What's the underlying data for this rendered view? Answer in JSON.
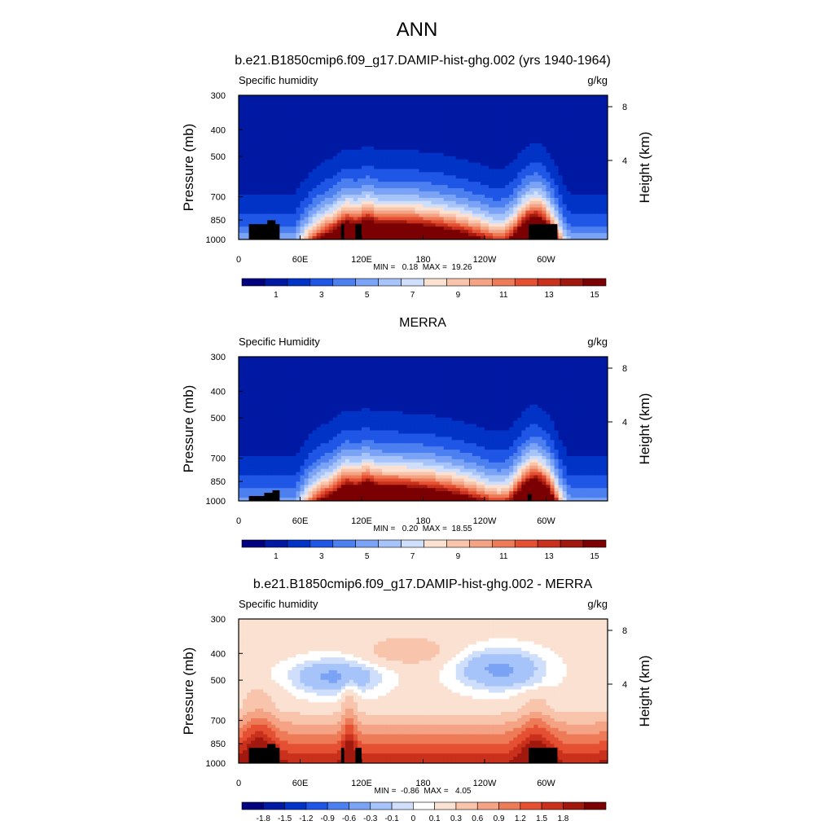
{
  "figure": {
    "title": "ANN",
    "panel_titles": [
      "b.e21.B1850cmip6.f09_g17.DAMIP-hist-ghg.002 (yrs 1940-1964)",
      "MERRA",
      "b.e21.B1850cmip6.f09_g17.DAMIP-hist-ghg.002 - MERRA"
    ]
  },
  "colors": {
    "abs_levels": [
      "#00007f",
      "#0019a3",
      "#0033c6",
      "#1f56e6",
      "#4c7ff0",
      "#7aa3f5",
      "#a6c4f9",
      "#cfdefb",
      "#fbe1d2",
      "#f8c4ab",
      "#f4a384",
      "#ee7b58",
      "#e65032",
      "#c9311c",
      "#a1180e",
      "#7a0003"
    ],
    "diff_levels": [
      "#00007f",
      "#0019a3",
      "#0033c6",
      "#1f56e6",
      "#4c7ff0",
      "#7aa3f5",
      "#a6c4f9",
      "#cfdefb",
      "#ffffff",
      "#fbe1d2",
      "#f8c4ab",
      "#f4a384",
      "#ee7b58",
      "#e65032",
      "#c9311c",
      "#a1180e",
      "#7a0003"
    ],
    "land_mask": "#000000"
  },
  "chart_data": [
    {
      "type": "heatmap",
      "panel_title": "b.e21.B1850cmip6.f09_g17.DAMIP-hist-ghg.002 (yrs 1940-1964)",
      "left_label": "Specific humidity",
      "right_label": "g/kg",
      "ylabel": "Pressure (mb)",
      "ylabel_right": "Height (km)",
      "x_ticks": [
        "0",
        "60E",
        "120E",
        "180",
        "120W",
        "60W"
      ],
      "x_tick_values": [
        0,
        60,
        120,
        180,
        240,
        300
      ],
      "xlim": [
        0,
        360
      ],
      "y_ticks": [
        "300",
        "400",
        "500",
        "700",
        "850",
        "1000"
      ],
      "y_tick_values": [
        300,
        400,
        500,
        700,
        850,
        1000
      ],
      "ylim": [
        300,
        1000
      ],
      "y_scale": "log",
      "right_ticks": [
        "8",
        "4"
      ],
      "right_tick_values": [
        8,
        4
      ],
      "stats": "MIN =   0.18  MAX =  19.26",
      "min": 0.18,
      "max": 19.26,
      "colorbar_labels": [
        "1",
        "3",
        "5",
        "7",
        "9",
        "11",
        "13",
        "15"
      ],
      "colorbar_label_positions": [
        1,
        3,
        5,
        7,
        9,
        11,
        13,
        15
      ],
      "levels": [
        0,
        1,
        2,
        3,
        4,
        5,
        6,
        7,
        8,
        9,
        10,
        11,
        12,
        13,
        14,
        15
      ],
      "land": [
        [
          10,
          40,
          880
        ],
        [
          28,
          36,
          852
        ],
        [
          100,
          103,
          880
        ],
        [
          114,
          120,
          880
        ],
        [
          283,
          311,
          880
        ]
      ]
    },
    {
      "type": "heatmap",
      "panel_title": "MERRA",
      "left_label": "Specific Humidity",
      "right_label": "g/kg",
      "ylabel": "Pressure (mb)",
      "ylabel_right": "Height (km)",
      "x_ticks": [
        "0",
        "60E",
        "120E",
        "180",
        "120W",
        "60W"
      ],
      "x_tick_values": [
        0,
        60,
        120,
        180,
        240,
        300
      ],
      "xlim": [
        0,
        360
      ],
      "y_ticks": [
        "300",
        "400",
        "500",
        "700",
        "850",
        "1000"
      ],
      "y_tick_values": [
        300,
        400,
        500,
        700,
        850,
        1000
      ],
      "ylim": [
        300,
        1000
      ],
      "y_scale": "log",
      "right_ticks": [
        "8",
        "4"
      ],
      "right_tick_values": [
        8,
        4
      ],
      "stats": "MIN =   0.20  MAX =  18.55",
      "min": 0.2,
      "max": 18.55,
      "colorbar_labels": [
        "1",
        "3",
        "5",
        "7",
        "9",
        "11",
        "13",
        "15"
      ],
      "colorbar_label_positions": [
        1,
        3,
        5,
        7,
        9,
        11,
        13,
        15
      ],
      "levels": [
        0,
        1,
        2,
        3,
        4,
        5,
        6,
        7,
        8,
        9,
        10,
        11,
        12,
        13,
        14,
        15
      ],
      "land": [
        [
          10,
          28,
          960
        ],
        [
          25,
          33,
          935
        ],
        [
          33,
          40,
          915
        ],
        [
          282,
          286,
          945
        ]
      ]
    },
    {
      "type": "heatmap",
      "panel_title": "b.e21.B1850cmip6.f09_g17.DAMIP-hist-ghg.002 - MERRA",
      "left_label": "Specific humidity",
      "right_label": "g/kg",
      "ylabel": "Pressure (mb)",
      "ylabel_right": "Height (km)",
      "x_ticks": [
        "0",
        "60E",
        "120E",
        "180",
        "120W",
        "60W"
      ],
      "x_tick_values": [
        0,
        60,
        120,
        180,
        240,
        300
      ],
      "xlim": [
        0,
        360
      ],
      "y_ticks": [
        "300",
        "400",
        "500",
        "700",
        "850",
        "1000"
      ],
      "y_tick_values": [
        300,
        400,
        500,
        700,
        850,
        1000
      ],
      "ylim": [
        300,
        1000
      ],
      "y_scale": "log",
      "right_ticks": [
        "8",
        "4"
      ],
      "right_tick_values": [
        8,
        4
      ],
      "stats": "MIN =  -0.86  MAX =   4.05",
      "min": -0.86,
      "max": 4.05,
      "colorbar_labels": [
        "-1.8",
        "-1.5",
        "-1.2",
        "-0.9",
        "-0.6",
        "-0.3",
        "-0.1",
        "0",
        "0.1",
        "0.3",
        "0.6",
        "0.9",
        "1.2",
        "1.5",
        "1.8"
      ],
      "levels": [
        -1.8,
        -1.5,
        -1.2,
        -0.9,
        -0.6,
        -0.3,
        -0.1,
        0,
        0.1,
        0.3,
        0.6,
        0.9,
        1.2,
        1.5,
        1.8
      ],
      "land": [
        [
          10,
          40,
          880
        ],
        [
          28,
          36,
          852
        ],
        [
          100,
          103,
          880
        ],
        [
          114,
          120,
          880
        ],
        [
          283,
          311,
          880
        ]
      ]
    }
  ]
}
